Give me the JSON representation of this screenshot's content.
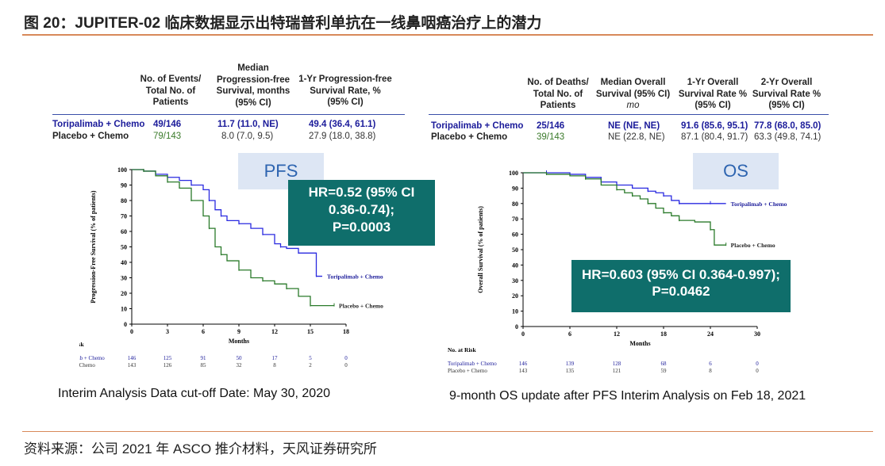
{
  "figure_title": "图 20：JUPITER-02 临床数据显示出特瑞普利单抗在一线鼻咽癌治疗上的潜力",
  "source": "资料来源：公司 2021 年 ASCO 推介材料，天风证券研究所",
  "colors": {
    "toripalimab": "#2a2ae0",
    "placebo": "#2a7a2a",
    "hr_box": "#0f6e6b",
    "tag_bg": "#dde6f4",
    "accent_rule": "#d8895a"
  },
  "pfs": {
    "headers": [
      "No. of Events/ Total No. of Patients",
      "Median Progression-free Survival, months (95% CI)",
      "1-Yr Progression-free Survival Rate, % (95% CI)"
    ],
    "rows": [
      {
        "arm": "Toripalimab + Chemo",
        "events": "49/146",
        "median": "11.7 (11.0, NE)",
        "rate": "49.4 (36.4, 61.1)"
      },
      {
        "arm": "Placebo + Chemo",
        "events": "79/143",
        "median": "8.0 (7.0, 9.5)",
        "rate": "27.9 (18.0, 38.8)"
      }
    ],
    "tag": "PFS",
    "hr_text": [
      "HR=0.52 (95% CI",
      "0.36-0.74);",
      "P=0.0003"
    ],
    "caption": "Interim Analysis Data cut-off Date: May 30, 2020",
    "risk_header": "No. at Risk",
    "risk": [
      {
        "arm": "Toripalimab + Chemo",
        "values": [
          "146",
          "125",
          "91",
          "50",
          "17",
          "5",
          "0"
        ]
      },
      {
        "arm": "Placebo + Chemo",
        "values": [
          "143",
          "126",
          "85",
          "32",
          "8",
          "2",
          "0"
        ]
      }
    ],
    "ylabel": "Progression-Free Survival (% of patients)",
    "xlabel": "Months"
  },
  "os": {
    "headers": [
      "No. of Deaths/ Total No. of Patients",
      "Median Overall Survival (95% CI)",
      "mo",
      "1-Yr Overall Survival Rate % (95% CI)",
      "2-Yr Overall Survival Rate % (95% CI)"
    ],
    "rows": [
      {
        "arm": "Toripalimab + Chemo",
        "deaths": "25/146",
        "median": "NE (NE, NE)",
        "yr1": "91.6 (85.6, 95.1)",
        "yr2": "77.8 (68.0, 85.0)"
      },
      {
        "arm": "Placebo + Chemo",
        "deaths": "39/143",
        "median": "NE (22.8, NE)",
        "yr1": "87.1 (80.4, 91.7)",
        "yr2": "63.3 (49.8, 74.1)"
      }
    ],
    "tag": "OS",
    "hr_text": [
      "HR=0.603 (95% CI 0.364-0.997);",
      "P=0.0462"
    ],
    "caption": "9-month OS update after PFS Interim Analysis on Feb 18, 2021",
    "risk_header": "No. at Risk",
    "risk": [
      {
        "arm": "Toripalimab + Chemo",
        "values": [
          "146",
          "139",
          "128",
          "68",
          "6",
          "0"
        ]
      },
      {
        "arm": "Placebo + Chemo",
        "values": [
          "143",
          "135",
          "121",
          "59",
          "8",
          "0"
        ]
      }
    ],
    "ylabel": "Overall Survival (% of patients)",
    "xlabel": "Months"
  },
  "chart_data": [
    {
      "type": "line",
      "title": "PFS",
      "xlabel": "Months",
      "ylabel": "Progression-Free Survival (% of patients)",
      "xlim": [
        0,
        18
      ],
      "ylim": [
        0,
        100
      ],
      "xticks": [
        0,
        3,
        6,
        9,
        12,
        15,
        18
      ],
      "yticks": [
        0,
        10,
        20,
        30,
        40,
        50,
        60,
        70,
        80,
        90,
        100
      ],
      "series": [
        {
          "name": "Toripalimab + Chemo",
          "x": [
            0,
            1,
            2,
            3,
            4,
            5,
            6,
            6.5,
            7,
            7.5,
            8,
            9,
            10,
            11,
            12,
            12.5,
            13,
            14,
            15,
            15.5,
            16
          ],
          "y": [
            100,
            99,
            97,
            95,
            93,
            90,
            87,
            80,
            74,
            70,
            67,
            65,
            62,
            58,
            52,
            50,
            49,
            46,
            46,
            31,
            31
          ]
        },
        {
          "name": "Placebo + Chemo",
          "x": [
            0,
            1,
            2,
            3,
            4,
            5,
            6,
            6.5,
            7,
            7.5,
            8,
            9,
            10,
            11,
            12,
            13,
            14,
            15,
            16,
            17
          ],
          "y": [
            100,
            99,
            96,
            92,
            88,
            80,
            70,
            62,
            50,
            45,
            41,
            35,
            30,
            28,
            26,
            23,
            18,
            12,
            12,
            12
          ]
        }
      ]
    },
    {
      "type": "line",
      "title": "OS",
      "xlabel": "Months",
      "ylabel": "Overall Survival (% of patients)",
      "xlim": [
        0,
        30
      ],
      "ylim": [
        0,
        100
      ],
      "xticks": [
        0,
        6,
        12,
        18,
        24,
        30
      ],
      "yticks": [
        0,
        10,
        20,
        30,
        40,
        50,
        60,
        70,
        80,
        90,
        100
      ],
      "series": [
        {
          "name": "Toripalimab + Chemo",
          "x": [
            0,
            3,
            6,
            8,
            10,
            12,
            14,
            16,
            17,
            18,
            19,
            20,
            22,
            24,
            26
          ],
          "y": [
            100,
            100,
            99,
            97,
            94,
            92,
            90,
            88,
            87,
            85,
            82,
            80,
            80,
            80,
            80
          ]
        },
        {
          "name": "Placebo + Chemo",
          "x": [
            0,
            3,
            6,
            8,
            10,
            12,
            13,
            14,
            15,
            16,
            17,
            18,
            19,
            20,
            22,
            24,
            24.5,
            26
          ],
          "y": [
            100,
            99,
            98,
            96,
            92,
            89,
            87,
            85,
            83,
            80,
            77,
            74,
            72,
            69,
            68,
            63,
            53,
            53
          ]
        }
      ]
    }
  ]
}
